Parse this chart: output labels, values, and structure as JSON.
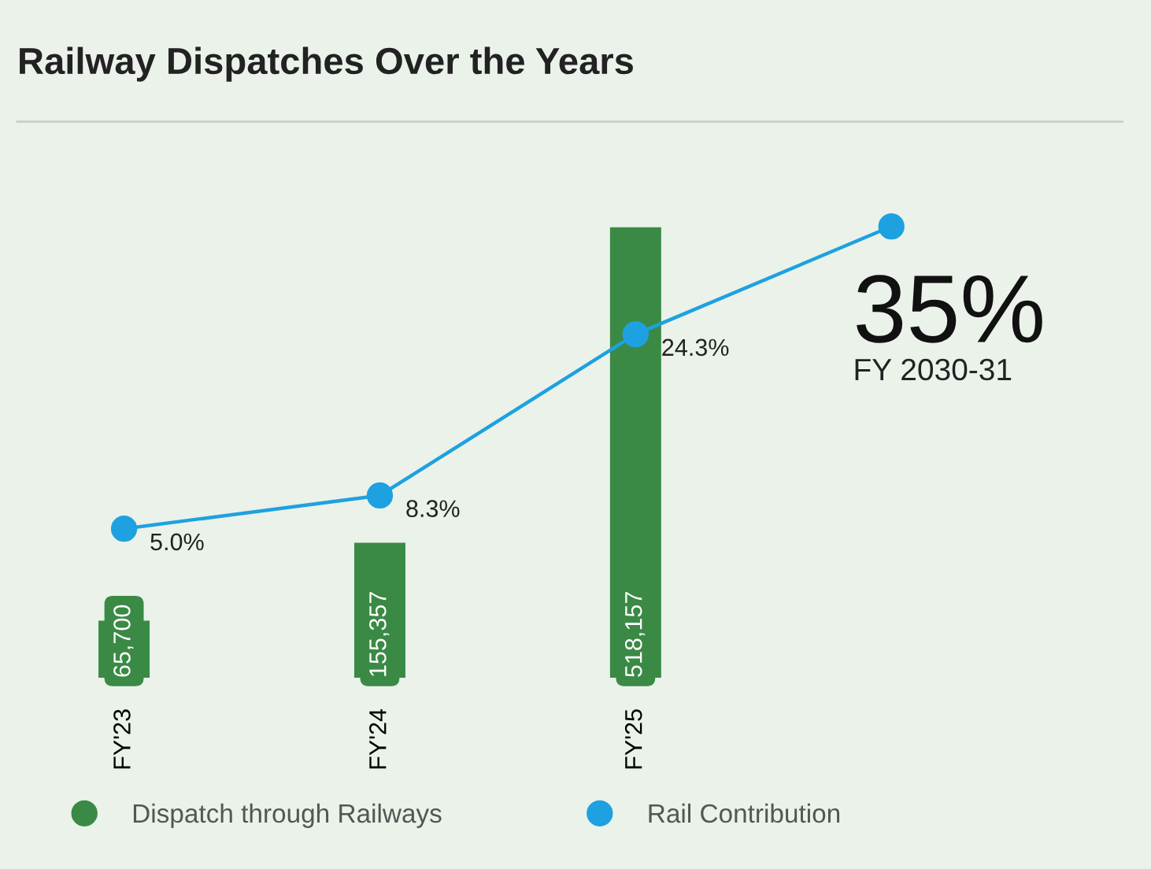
{
  "chart_data": {
    "type": "bar",
    "title": "Railway Dispatches Over the Years",
    "categories": [
      "FY'23",
      "FY'24",
      "FY'25",
      "FY 2030-31"
    ],
    "series": [
      {
        "name": "Dispatch through Railways",
        "type": "bar",
        "color": "#3a8a45",
        "values": [
          65700,
          155357,
          518157,
          null
        ],
        "value_labels": [
          "65,700",
          "155,357",
          "518,157",
          null
        ]
      },
      {
        "name": "Rail Contribution",
        "type": "line",
        "axis": "y2",
        "color": "#1ea1e0",
        "marker": "circle",
        "values": [
          5.0,
          8.3,
          24.3,
          35
        ],
        "value_labels": [
          "5.0%",
          "8.3%",
          "24.3%",
          "35%"
        ]
      }
    ],
    "legend": "bottom",
    "grid": false,
    "tick_labels": "x"
  }
}
